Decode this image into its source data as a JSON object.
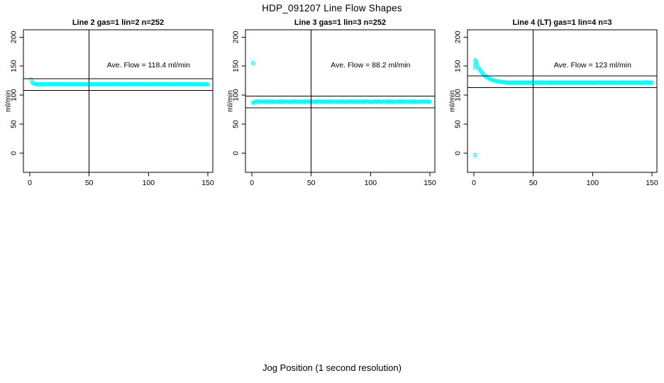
{
  "page": {
    "title": "HDP_091207  Line Flow Shapes",
    "xlabel": "Jog Position (1 second resolution)",
    "background": "#ffffff",
    "point_color": "#00ffff",
    "axis_color": "#000000"
  },
  "chart_data": [
    {
      "type": "scatter",
      "title": "Line 2 gas=1 lin=2 n=252",
      "ylabel": "ml/min",
      "xlim": [
        0,
        150
      ],
      "ylim": [
        0,
        200
      ],
      "xticks": [
        0,
        50,
        100,
        150
      ],
      "yticks": [
        0,
        50,
        100,
        150,
        200
      ],
      "grid": false,
      "legend": null,
      "annotation": {
        "text": "Ave. Flow =  118.4  ml/min",
        "x": 100,
        "y": 148
      },
      "ave_flow": 118.4,
      "vline_x": 50,
      "hlines": [
        128.4,
        108.4
      ],
      "series": {
        "x_start": 1,
        "x_step": 1,
        "y": [
          127.0,
          122.0,
          120.6,
          119.9,
          119.6,
          119.4,
          118.8,
          119.3,
          118.6,
          119.1,
          119.5,
          118.7,
          119.0,
          119.4,
          118.6,
          119.2,
          118.8,
          119.5,
          118.7,
          119.1,
          119.4,
          118.6,
          119.0,
          119.3,
          118.7,
          119.2,
          118.8,
          119.4,
          118.6,
          119.0,
          119.4,
          118.6,
          119.0,
          119.3,
          118.7,
          119.2,
          118.8,
          119.4,
          118.6,
          119.0,
          119.4,
          118.6,
          119.0,
          119.3,
          118.7,
          119.2,
          118.8,
          119.4,
          118.6,
          119.0,
          119.4,
          118.6,
          119.0,
          119.3,
          118.7,
          119.2,
          118.8,
          119.4,
          118.6,
          119.0,
          119.4,
          118.6,
          119.0,
          119.3,
          118.7,
          119.2,
          118.8,
          119.4,
          118.6,
          119.0,
          119.4,
          118.6,
          119.0,
          119.3,
          118.7,
          119.2,
          118.8,
          119.4,
          118.6,
          119.0,
          119.4,
          118.6,
          119.0,
          119.3,
          118.7,
          119.2,
          118.8,
          119.4,
          118.6,
          119.0,
          119.4,
          118.6,
          119.0,
          119.3,
          118.7,
          119.2,
          118.8,
          119.4,
          118.6,
          119.0,
          119.4,
          118.6,
          119.0,
          119.3,
          118.7,
          119.2,
          118.8,
          119.4,
          118.6,
          119.0,
          119.4,
          118.6,
          119.0,
          119.3,
          118.7,
          119.2,
          118.8,
          119.4,
          118.6,
          119.0,
          119.4,
          118.6,
          119.0,
          119.3,
          118.7,
          119.2,
          118.8,
          119.4,
          118.6,
          119.0,
          119.4,
          118.6,
          119.0,
          119.3,
          118.7,
          119.2,
          118.8,
          119.4,
          118.6,
          119.0,
          119.2,
          118.5,
          118.9,
          119.1,
          118.6,
          119.0,
          118.7,
          119.2,
          118.5,
          118.8
        ]
      },
      "extra_points": []
    },
    {
      "type": "scatter",
      "title": "Line 3 gas=1 lin=3 n=252",
      "ylabel": "ml/min",
      "xlim": [
        0,
        150
      ],
      "ylim": [
        0,
        200
      ],
      "xticks": [
        0,
        50,
        100,
        150
      ],
      "yticks": [
        0,
        50,
        100,
        150,
        200
      ],
      "grid": false,
      "legend": null,
      "annotation": {
        "text": "Ave. Flow =  88.2 ml/min",
        "x": 100,
        "y": 148
      },
      "ave_flow": 88.2,
      "vline_x": 50,
      "hlines": [
        98.2,
        78.2
      ],
      "series": {
        "x_start": 1,
        "x_step": 1,
        "y": [
          87.0,
          88.0,
          88.6,
          89.3,
          88.1,
          88.9,
          89.5,
          88.3,
          88.8,
          89.1,
          88.4,
          89.0,
          88.6,
          89.3,
          88.1,
          88.9,
          89.5,
          88.3,
          88.8,
          89.1,
          88.4,
          89.0,
          88.6,
          89.3,
          88.1,
          88.9,
          89.5,
          88.3,
          88.8,
          89.1,
          88.4,
          89.0,
          88.6,
          89.3,
          88.1,
          88.9,
          89.5,
          88.3,
          88.8,
          89.1,
          88.4,
          89.0,
          88.6,
          89.3,
          88.1,
          88.9,
          89.5,
          88.3,
          88.8,
          89.1,
          88.4,
          89.0,
          88.6,
          89.3,
          88.1,
          88.9,
          89.5,
          88.3,
          88.8,
          89.1,
          88.4,
          89.0,
          88.6,
          89.3,
          88.1,
          88.9,
          89.5,
          88.3,
          88.8,
          89.1,
          88.4,
          89.0,
          88.6,
          89.3,
          88.1,
          88.9,
          89.5,
          88.3,
          88.8,
          89.1,
          88.4,
          89.0,
          88.6,
          89.3,
          88.1,
          88.9,
          89.5,
          88.3,
          88.8,
          89.1,
          88.4,
          89.0,
          88.6,
          89.3,
          88.1,
          88.9,
          89.5,
          88.3,
          88.8,
          89.1,
          88.4,
          89.0,
          88.6,
          89.3,
          88.1,
          88.9,
          89.5,
          88.3,
          88.8,
          89.1,
          88.4,
          89.0,
          88.6,
          89.3,
          88.1,
          88.9,
          89.5,
          88.3,
          88.8,
          89.1,
          88.4,
          89.0,
          88.6,
          89.3,
          88.1,
          88.9,
          89.5,
          88.3,
          88.8,
          89.1,
          88.4,
          89.0,
          88.6,
          89.3,
          88.1,
          88.9,
          89.5,
          88.3,
          88.8,
          89.1,
          88.4,
          89.0,
          88.7,
          89.2,
          88.4,
          88.9,
          89.4,
          88.5,
          89.0,
          88.6
        ]
      },
      "extra_points": [
        [
          1,
          155.5
        ]
      ]
    },
    {
      "type": "scatter",
      "title": "Line 4 (LT) gas=1 lin=4 n=3",
      "ylabel": "ml/min",
      "xlim": [
        0,
        150
      ],
      "ylim": [
        0,
        200
      ],
      "xticks": [
        0,
        50,
        100,
        150
      ],
      "yticks": [
        0,
        50,
        100,
        150,
        200
      ],
      "grid": false,
      "legend": null,
      "annotation": {
        "text": "Ave. Flow =  123  ml/min",
        "x": 100,
        "y": 148
      },
      "ave_flow": 123,
      "vline_x": 50,
      "hlines": [
        133,
        113
      ],
      "series": {
        "x_start": 1,
        "x_step": 1,
        "y": [
          160.2,
          155.1,
          150.7,
          146.9,
          143.6,
          140.7,
          138.2,
          136.0,
          134.1,
          132.4,
          131.0,
          129.7,
          128.6,
          127.6,
          126.8,
          126.0,
          125.4,
          124.8,
          124.3,
          123.9,
          123.5,
          123.2,
          122.9,
          122.7,
          122.5,
          122.3,
          122.1,
          122.0,
          121.9,
          121.8,
          121.8,
          122.1,
          121.6,
          122.0,
          121.7,
          122.2,
          121.5,
          121.9,
          122.0,
          121.6,
          121.8,
          122.1,
          121.6,
          122.0,
          121.7,
          122.2,
          121.5,
          121.9,
          122.0,
          121.6,
          121.8,
          122.1,
          121.6,
          122.0,
          121.7,
          122.2,
          121.5,
          121.9,
          122.0,
          121.6,
          121.8,
          122.1,
          121.6,
          122.0,
          121.7,
          122.2,
          121.5,
          121.9,
          122.0,
          121.6,
          121.8,
          122.1,
          121.6,
          122.0,
          121.7,
          122.2,
          121.5,
          121.9,
          122.0,
          121.6,
          121.8,
          122.1,
          121.6,
          122.0,
          121.7,
          122.2,
          121.5,
          121.9,
          122.0,
          121.6,
          121.8,
          122.1,
          121.6,
          122.0,
          121.7,
          122.2,
          121.5,
          121.9,
          122.0,
          121.6,
          121.8,
          122.1,
          121.6,
          122.0,
          121.7,
          122.2,
          121.5,
          121.9,
          122.0,
          121.6,
          121.8,
          122.1,
          121.6,
          122.0,
          121.7,
          122.2,
          121.5,
          121.9,
          122.0,
          121.6,
          121.8,
          122.1,
          121.6,
          122.0,
          121.7,
          122.2,
          121.5,
          121.9,
          122.0,
          121.6,
          121.8,
          122.1,
          121.6,
          122.0,
          121.7,
          122.2,
          121.5,
          121.9,
          122.0,
          121.6,
          121.8,
          122.1,
          121.6,
          122.0,
          121.7,
          122.2,
          121.5,
          121.9,
          122.0,
          121.6
        ]
      },
      "extra_points": [
        [
          1,
          -3
        ],
        [
          1,
          148
        ],
        [
          1,
          152
        ],
        [
          2,
          158
        ]
      ]
    }
  ]
}
